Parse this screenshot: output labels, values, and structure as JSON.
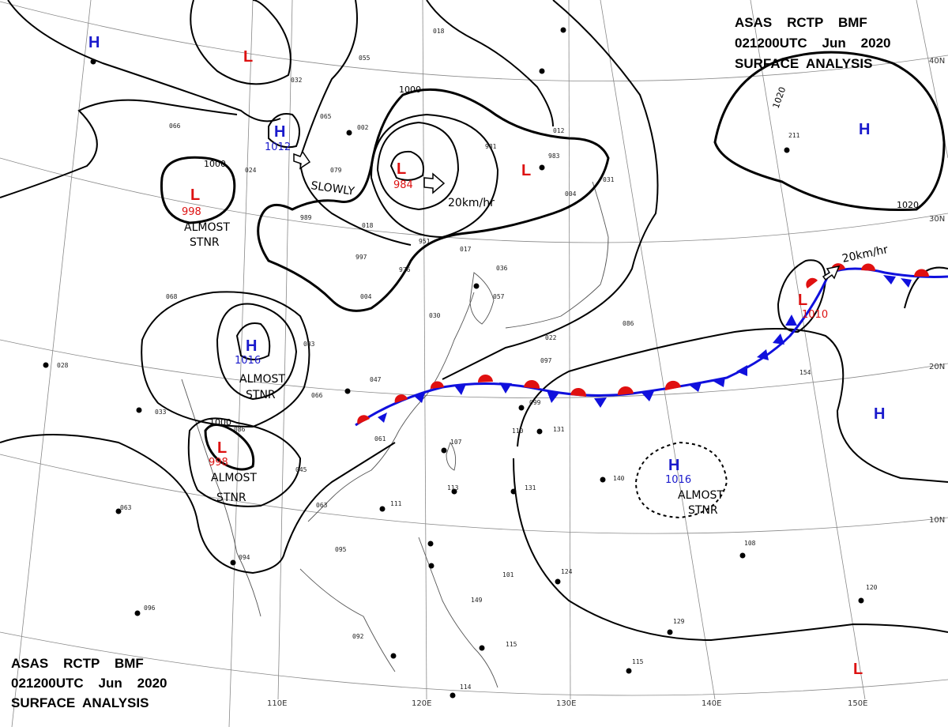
{
  "header_top_right": {
    "line1": "ASAS    RCTP    BMF",
    "line2": "021200UTC    Jun    2020",
    "line3": "SURFACE  ANALYSIS"
  },
  "header_bottom_left": {
    "line1": "ASAS    RCTP    BMF",
    "line2": "021200UTC    Jun    2020",
    "line3": "SURFACE  ANALYSIS"
  },
  "colors": {
    "high": "#1a1acc",
    "low": "#dd1111",
    "cold_front": "#1010dd",
    "warm_front": "#e01010",
    "isobar": "#000000",
    "grid": "#888888"
  },
  "grid_labels": {
    "lon": [
      "110E",
      "120E",
      "130E",
      "140E",
      "150E"
    ],
    "lat": [
      "40N",
      "30N",
      "20N",
      "10N"
    ]
  },
  "pressure_centers": [
    {
      "type": "H",
      "pressure": ""
    },
    {
      "type": "L",
      "pressure": ""
    },
    {
      "type": "H",
      "pressure": "1012"
    },
    {
      "type": "L",
      "pressure": "998"
    },
    {
      "type": "L",
      "pressure": "984"
    },
    {
      "type": "L",
      "pressure": ""
    },
    {
      "type": "H",
      "pressure": ""
    },
    {
      "type": "H",
      "pressure": "1016"
    },
    {
      "type": "L",
      "pressure": "998"
    },
    {
      "type": "L",
      "pressure": "1010"
    },
    {
      "type": "H",
      "pressure": ""
    },
    {
      "type": "H",
      "pressure": "1016"
    },
    {
      "type": "L",
      "pressure": ""
    }
  ],
  "annotations": [
    {
      "text": "SLOWLY"
    },
    {
      "text": "20km/hr"
    },
    {
      "text": "20km/hr"
    },
    {
      "text": "ALMOST"
    },
    {
      "text": "STNR"
    },
    {
      "text": "ALMOST"
    },
    {
      "text": "STNR"
    },
    {
      "text": "ALMOST"
    },
    {
      "text": "STNR"
    },
    {
      "text": "ALMOST"
    },
    {
      "text": "STNR"
    }
  ],
  "isobar_labels": [
    "1000",
    "1000",
    "1000",
    "1020",
    "1020"
  ],
  "station_values": [
    "018",
    "055",
    "032",
    "065",
    "002",
    "981",
    "983",
    "012",
    "004",
    "031",
    "024",
    "989",
    "018",
    "951",
    "997",
    "976",
    "017",
    "036",
    "004",
    "030",
    "057",
    "022",
    "083",
    "086",
    "068",
    "028",
    "033",
    "061",
    "113",
    "107",
    "111",
    "099",
    "110",
    "131",
    "140",
    "131",
    "124",
    "101",
    "149",
    "115",
    "094",
    "095",
    "096",
    "092",
    "114",
    "063",
    "045",
    "086",
    "211",
    "154",
    "120",
    "129",
    "115",
    "047",
    "066",
    "097",
    "108",
    "079",
    "066",
    "063"
  ]
}
